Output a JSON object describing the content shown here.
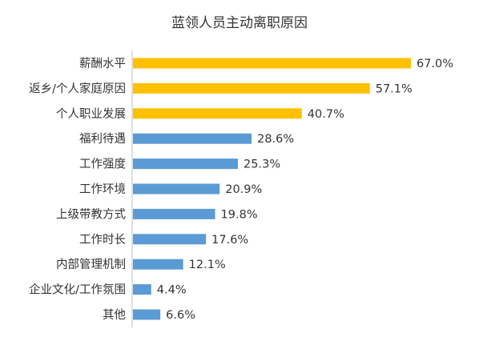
{
  "chart_data": {
    "type": "bar",
    "orientation": "horizontal",
    "title": "蓝领人员主动离职原因",
    "categories": [
      "薪酬水平",
      "返乡/个人家庭原因",
      "个人职业发展",
      "福利待遇",
      "工作强度",
      "工作环境",
      "上级带教方式",
      "工作时长",
      "内部管理机制",
      "企业文化/工作氛围",
      "其他"
    ],
    "values": [
      67.0,
      57.1,
      40.7,
      28.6,
      25.3,
      20.9,
      19.8,
      17.6,
      12.1,
      4.4,
      6.6
    ],
    "value_labels": [
      "67.0%",
      "57.1%",
      "40.7%",
      "28.6%",
      "25.3%",
      "20.9%",
      "19.8%",
      "17.6%",
      "12.1%",
      "4.4%",
      "6.6%"
    ],
    "bar_colors": [
      "#FFC000",
      "#FFC000",
      "#FFC000",
      "#5B9BD5",
      "#5B9BD5",
      "#5B9BD5",
      "#5B9BD5",
      "#5B9BD5",
      "#5B9BD5",
      "#5B9BD5",
      "#5B9BD5"
    ],
    "xlim": [
      0,
      67.0
    ],
    "grid": false,
    "legend": "none",
    "xlabel": "",
    "ylabel": ""
  }
}
